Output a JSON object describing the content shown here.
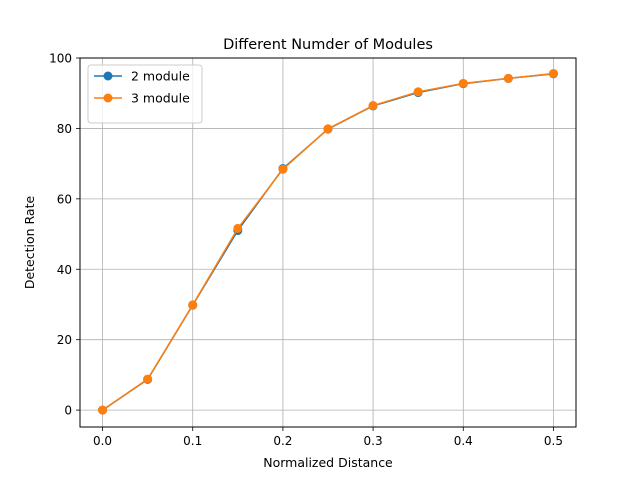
{
  "chart_data": {
    "type": "line",
    "title": "Different Numder of Modules",
    "xlabel": "Normalized Distance",
    "ylabel": "Detection Rate",
    "xlim": [
      -0.025,
      0.525
    ],
    "ylim": [
      -4.8,
      100
    ],
    "xticks": [
      0.0,
      0.1,
      0.2,
      0.3,
      0.4,
      0.5
    ],
    "xtick_labels": [
      "0.0",
      "0.1",
      "0.2",
      "0.3",
      "0.4",
      "0.5"
    ],
    "yticks": [
      0,
      20,
      40,
      60,
      80,
      100
    ],
    "ytick_labels": [
      "0",
      "20",
      "40",
      "60",
      "80",
      "100"
    ],
    "grid": true,
    "legend_position": "upper-left",
    "x": [
      0.0,
      0.05,
      0.1,
      0.15,
      0.2,
      0.25,
      0.3,
      0.35,
      0.4,
      0.45,
      0.5
    ],
    "series": [
      {
        "name": "2 module",
        "color": "#1f77b4",
        "marker": "circle",
        "values": [
          0.0,
          8.7,
          29.8,
          51.0,
          68.6,
          79.8,
          86.4,
          90.2,
          92.7,
          94.2,
          95.5
        ]
      },
      {
        "name": "3 module",
        "color": "#ff7f0e",
        "marker": "circle",
        "values": [
          0.0,
          8.8,
          29.9,
          51.6,
          68.4,
          79.9,
          86.5,
          90.4,
          92.8,
          94.2,
          95.6
        ]
      }
    ]
  }
}
